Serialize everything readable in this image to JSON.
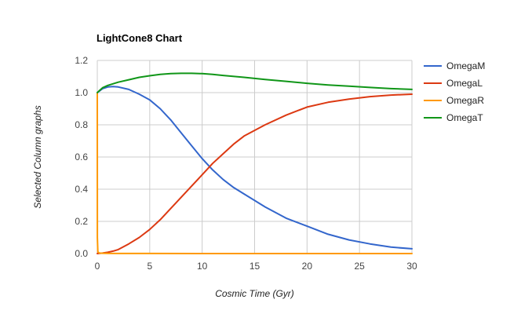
{
  "chart_data": {
    "type": "line",
    "title": "LightCone8 Chart",
    "xlabel": "Cosmic Time (Gyr)",
    "ylabel": "Selected Column graphs",
    "xlim": [
      0,
      30
    ],
    "ylim": [
      0,
      1.2
    ],
    "x_ticks": [
      "0",
      "5",
      "10",
      "15",
      "20",
      "25",
      "30"
    ],
    "y_ticks": [
      "0.0",
      "0.2",
      "0.4",
      "0.6",
      "0.8",
      "1.0",
      "1.2"
    ],
    "grid": true,
    "legend_position": "right",
    "series": [
      {
        "name": "OmegaM",
        "color": "#3366cc",
        "x": [
          0,
          0.5,
          1,
          1.5,
          2,
          3,
          4,
          5,
          6,
          7,
          8,
          9,
          10,
          11,
          12,
          13,
          14,
          16,
          18,
          20,
          22,
          24,
          26,
          28,
          30
        ],
        "y": [
          1.0,
          1.025,
          1.035,
          1.038,
          1.035,
          1.02,
          0.99,
          0.955,
          0.9,
          0.83,
          0.75,
          0.67,
          0.59,
          0.52,
          0.46,
          0.41,
          0.37,
          0.29,
          0.22,
          0.17,
          0.12,
          0.085,
          0.06,
          0.04,
          0.03
        ]
      },
      {
        "name": "OmegaL",
        "color": "#dc3912",
        "x": [
          0,
          0.5,
          1,
          1.5,
          2,
          3,
          4,
          5,
          6,
          7,
          8,
          9,
          10,
          11,
          12,
          13,
          14,
          16,
          18,
          20,
          22,
          24,
          26,
          28,
          30
        ],
        "y": [
          0,
          0.003,
          0.008,
          0.015,
          0.025,
          0.06,
          0.1,
          0.15,
          0.21,
          0.28,
          0.35,
          0.42,
          0.49,
          0.56,
          0.62,
          0.68,
          0.73,
          0.8,
          0.86,
          0.91,
          0.94,
          0.96,
          0.975,
          0.985,
          0.99
        ]
      },
      {
        "name": "OmegaR",
        "color": "#ff9900",
        "x": [
          0,
          0.01,
          0.05,
          0.2,
          0.5,
          1,
          2,
          5,
          10,
          15,
          20,
          25,
          30
        ],
        "y": [
          1.0,
          0.1,
          0.01,
          0.003,
          0.002,
          0.001,
          0.0005,
          0.0003,
          0.0002,
          0.0001,
          0.0001,
          0.0001,
          0.0001
        ]
      },
      {
        "name": "OmegaT",
        "color": "#109618",
        "x": [
          0,
          0.5,
          1,
          2,
          3,
          4,
          5,
          6,
          7,
          8,
          9,
          10,
          11,
          12,
          14,
          16,
          18,
          20,
          22,
          24,
          26,
          28,
          30
        ],
        "y": [
          1.0,
          1.03,
          1.045,
          1.065,
          1.08,
          1.095,
          1.105,
          1.113,
          1.118,
          1.12,
          1.12,
          1.118,
          1.113,
          1.107,
          1.095,
          1.082,
          1.07,
          1.058,
          1.048,
          1.04,
          1.032,
          1.025,
          1.02
        ]
      }
    ]
  }
}
